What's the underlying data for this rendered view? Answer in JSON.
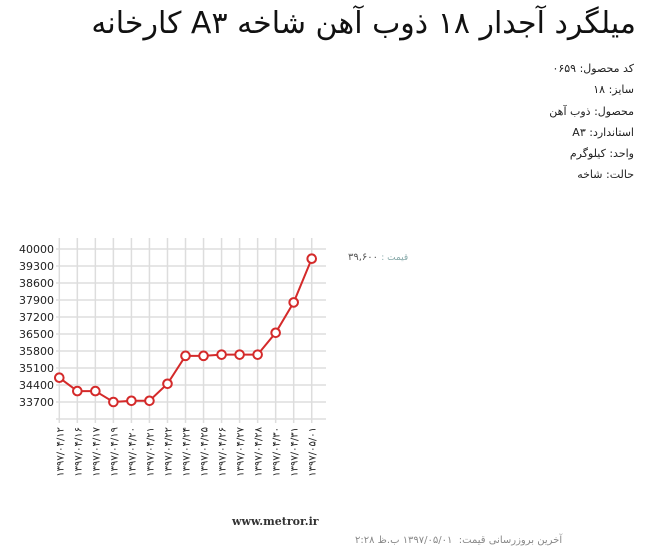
{
  "title": "میلگرد آجدار ۱۸ ذوب آهن شاخه A۳ کارخانه",
  "info": [
    {
      "label": "کد محصول:",
      "value": "۰۶۵۹"
    },
    {
      "label": "سایز:",
      "value": "۱۸"
    },
    {
      "label": "محصول:",
      "value": "ذوب آهن"
    },
    {
      "label": "استاندارد:",
      "value": "A۳"
    },
    {
      "label": "واحد:",
      "value": "کیلوگرم"
    },
    {
      "label": "حالت:",
      "value": "شاخه"
    }
  ],
  "price": {
    "label": "قیمت :",
    "value": "۳۹,۶۰۰"
  },
  "site": "www.metror.ir",
  "update": {
    "label": "آخرین بروزرسانی قیمت:",
    "value": "۱۳۹۷/۰۵/۰۱ ب.ظ ۲:۲۸"
  },
  "chart_data": {
    "type": "line",
    "color": "#d42a2a",
    "grid": true,
    "ylim": [
      33000,
      40000
    ],
    "yticks": [
      "40000",
      "39300",
      "38600",
      "37900",
      "37200",
      "36500",
      "35800",
      "35100",
      "34400",
      "33700"
    ],
    "categories": [
      "۱۳۹۷/۰۴/۱۲",
      "۱۳۹۷/۰۴/۱۶",
      "۱۳۹۷/۰۴/۱۷",
      "۱۳۹۷/۰۴/۱۹",
      "۱۳۹۷/۰۴/۲۰",
      "۱۳۹۷/۰۴/۲۱",
      "۱۳۹۷/۰۴/۲۲",
      "۱۳۹۷/۰۴/۲۴",
      "۱۳۹۷/۰۴/۲۵",
      "۱۳۹۷/۰۴/۲۶",
      "۱۳۹۷/۰۴/۲۷",
      "۱۳۹۷/۰۴/۲۸",
      "۱۳۹۷/۰۴/۳۰",
      "۱۳۹۷/۰۴/۳۱",
      "۱۳۹۷/۰۵/۰۱"
    ],
    "values": [
      34700,
      34150,
      34150,
      33700,
      33750,
      33750,
      34450,
      35600,
      35600,
      35650,
      35650,
      35650,
      36550,
      37800,
      39600
    ]
  }
}
